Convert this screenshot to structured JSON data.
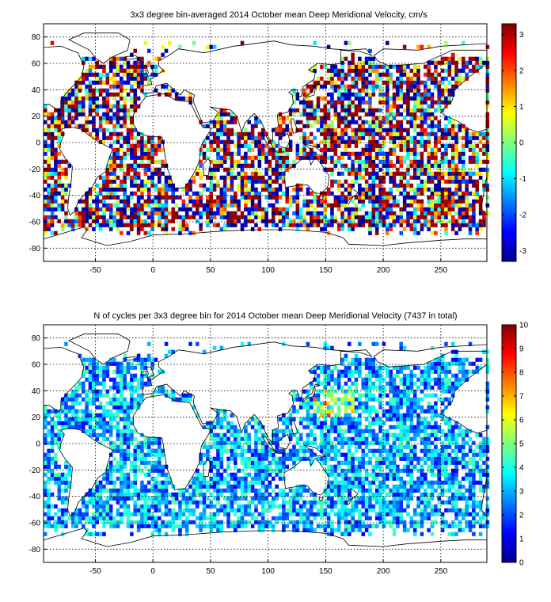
{
  "chart_data": [
    {
      "type": "heatmap",
      "title": "3x3 degree bin-averaged 2014 October mean Deep Meridional Velocity, cm/s",
      "xlabel": "",
      "ylabel": "",
      "xlim": [
        -95,
        290
      ],
      "ylim": [
        -90,
        90
      ],
      "x_ticks": [
        -50,
        0,
        50,
        100,
        150,
        200,
        250
      ],
      "y_ticks": [
        -80,
        -60,
        -40,
        -20,
        0,
        20,
        40,
        60,
        80
      ],
      "grid": true,
      "colorbar": {
        "min": -3.3,
        "max": 3.3,
        "ticks": [
          -3,
          -2,
          -1,
          0,
          1,
          2,
          3
        ],
        "colormap": "jet"
      },
      "bin_size_deg": 3,
      "seed": 7
    },
    {
      "type": "heatmap",
      "title": "N of cycles per 3x3 degree bin for 2014 October mean Deep Meridional Velocity (7437 in total)",
      "xlabel": "",
      "ylabel": "",
      "xlim": [
        -95,
        290
      ],
      "ylim": [
        -90,
        90
      ],
      "x_ticks": [
        -50,
        0,
        50,
        100,
        150,
        200,
        250
      ],
      "y_ticks": [
        -80,
        -60,
        -40,
        -20,
        0,
        20,
        40,
        60,
        80
      ],
      "grid": true,
      "colorbar": {
        "min": 0,
        "max": 10,
        "ticks": [
          0,
          1,
          2,
          3,
          4,
          5,
          6,
          7,
          8,
          9,
          10
        ],
        "colormap": "jet"
      },
      "bin_size_deg": 3,
      "seed": 23
    }
  ]
}
